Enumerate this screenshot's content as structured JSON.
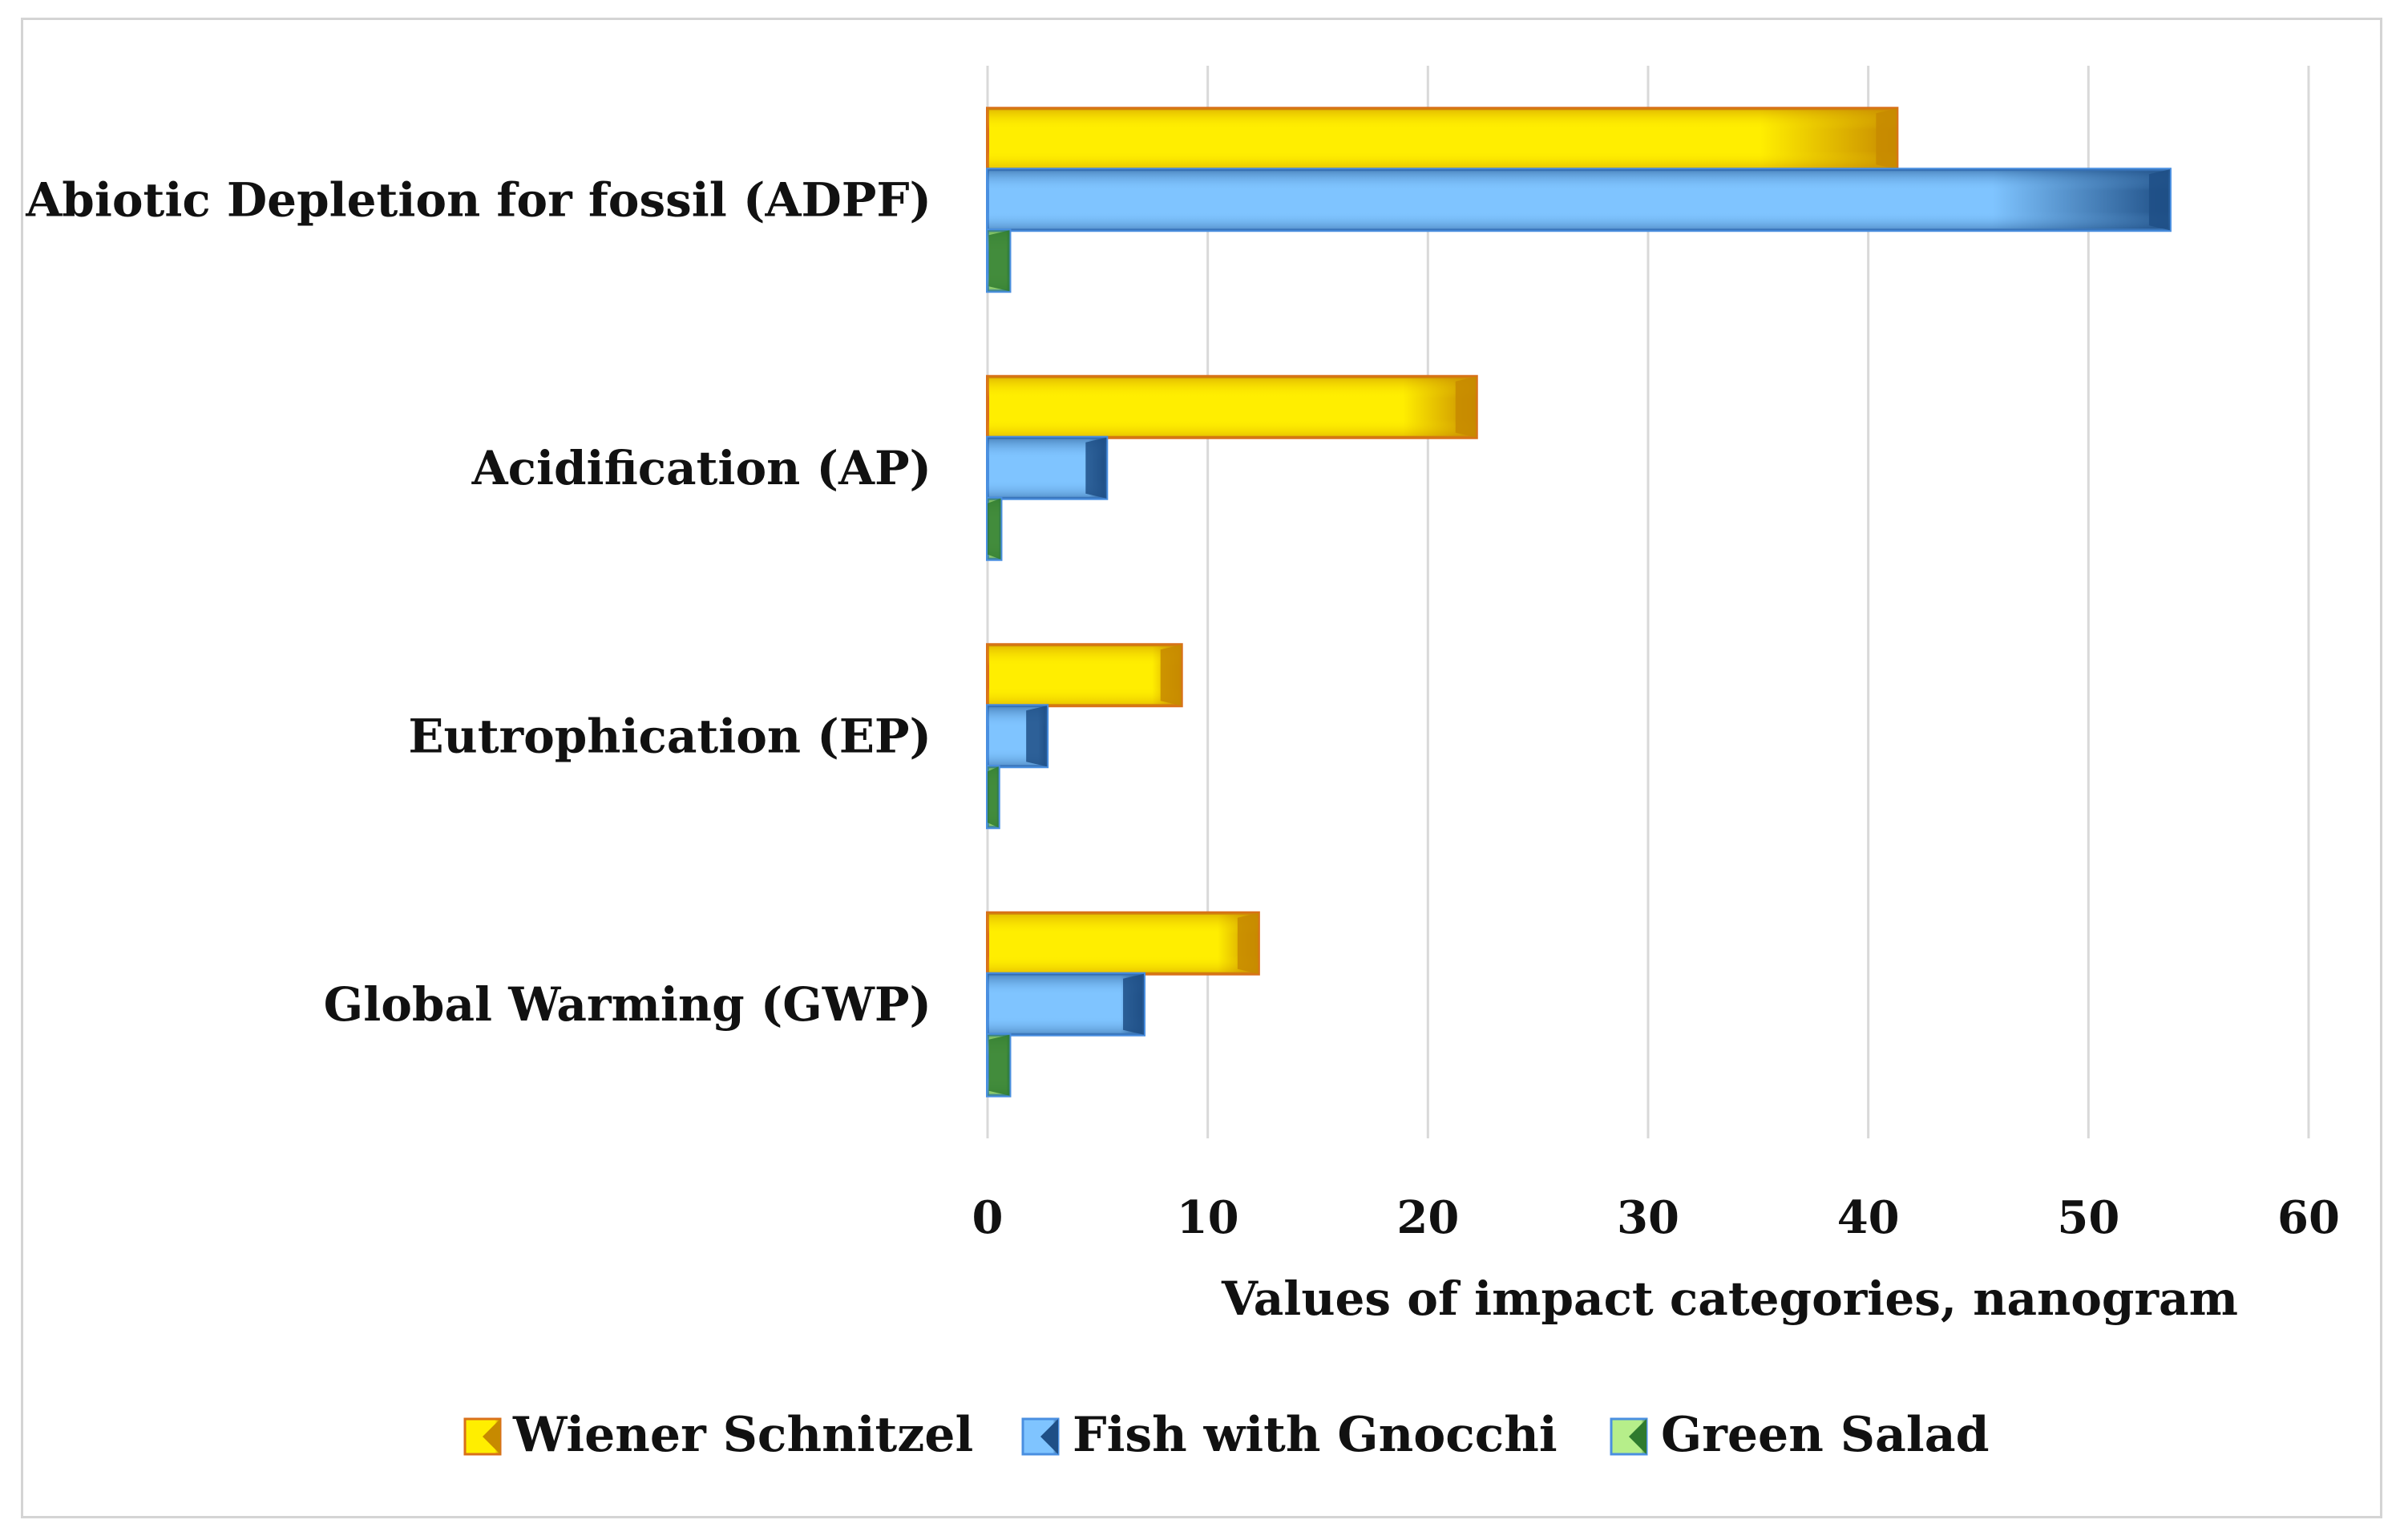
{
  "chart_data": {
    "type": "bar",
    "orientation": "horizontal",
    "title": "",
    "categories": [
      "Abiotic Depletion for fossil (ADPF)",
      "Acidification (AP)",
      "Eutrophication (EP)",
      "Global Warming (GWP)"
    ],
    "series": [
      {
        "name": "Wiener Schnitzel",
        "values": [
          41.3,
          22.2,
          8.8,
          12.3
        ]
      },
      {
        "name": "Fish with Gnocchi",
        "values": [
          53.7,
          5.4,
          2.7,
          7.1
        ]
      },
      {
        "name": "Green Salad",
        "values": [
          1.0,
          0.6,
          0.5,
          1.0
        ]
      }
    ],
    "xlabel": "Values of impact categories, nanogram",
    "ylabel": "",
    "xlim": [
      0,
      60
    ],
    "xticks": [
      0,
      10,
      20,
      30,
      40,
      50,
      60
    ],
    "xtick_labels": [
      "0",
      "10",
      "20",
      "30",
      "40",
      "50",
      "60"
    ],
    "grid": true,
    "legend_position": "bottom"
  },
  "colors": {
    "wiener_schnitzel_light": "#ffee00",
    "wiener_schnitzel_dark": "#c78a00",
    "wiener_schnitzel_edge": "#d9701a",
    "fish_with_gnocchi_light": "#7fc4ff",
    "fish_with_gnocchi_dark": "#1f4f86",
    "fish_with_gnocchi_edge": "#4a8fe0",
    "green_salad_light": "#b6ee8a",
    "green_salad_dark": "#2e7a2e",
    "green_salad_edge": "#4a8fe0",
    "gridline": "#d9d9d9"
  }
}
